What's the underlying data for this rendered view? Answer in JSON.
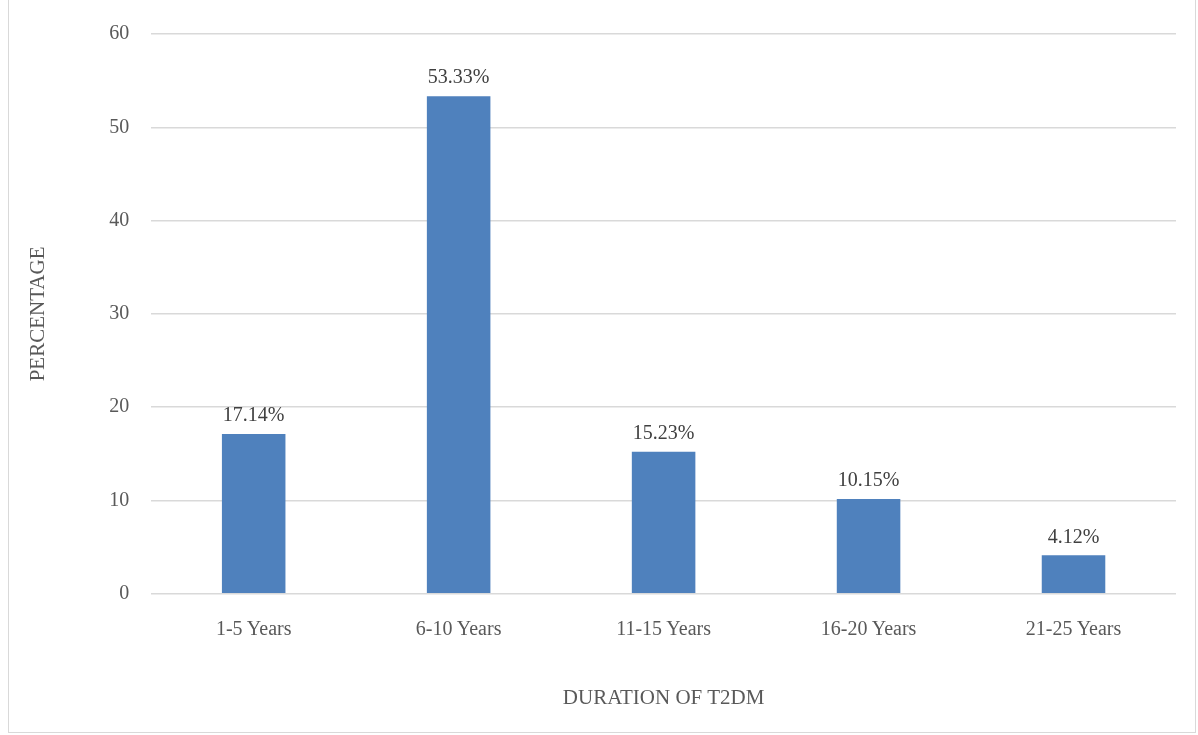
{
  "chart_data": {
    "type": "bar",
    "xlabel": "DURATION OF T2DM",
    "ylabel": "PERCENTAGE",
    "categories": [
      "1-5 Years",
      "6-10 Years",
      "11-15 Years",
      "16-20 Years",
      "21-25 Years"
    ],
    "values": [
      17.14,
      53.33,
      15.23,
      10.15,
      4.12
    ],
    "value_labels": [
      "17.14%",
      "53.33%",
      "15.23%",
      "10.15%",
      "4.12%"
    ],
    "color": "#4f81bd",
    "ylim": [
      0,
      60
    ],
    "yticks": [
      0,
      10,
      20,
      30,
      40,
      50,
      60
    ],
    "grid": "y",
    "legend": false
  }
}
